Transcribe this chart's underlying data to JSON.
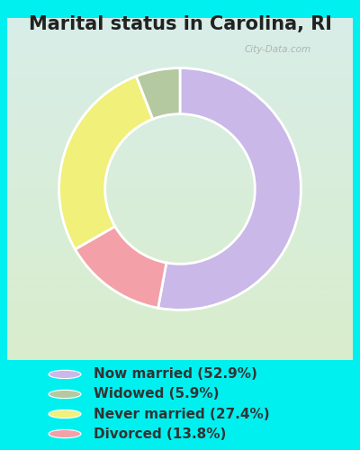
{
  "title": "Marital status in Carolina, RI",
  "slices": [
    52.9,
    13.8,
    27.4,
    5.9
  ],
  "colors": [
    "#c9b8e8",
    "#f4a0a8",
    "#f0f07a",
    "#b5c9a1"
  ],
  "labels": [
    "Now married (52.9%)",
    "Widowed (5.9%)",
    "Never married (27.4%)",
    "Divorced (13.8%)"
  ],
  "legend_colors": [
    "#c9b8e8",
    "#b5c9a1",
    "#f0f07a",
    "#f4a0a8"
  ],
  "legend_labels": [
    "Now married (52.9%)",
    "Widowed (5.9%)",
    "Never married (27.4%)",
    "Divorced (13.8%)"
  ],
  "bg_color": "#00f0f0",
  "chart_bg_top_left": "#d4ede6",
  "chart_bg_top_right": "#e8f4f0",
  "chart_bg_bottom_left": "#d8edcc",
  "chart_bg_bottom_right": "#e0f0d8",
  "donut_width": 0.38,
  "start_angle": 90,
  "watermark": "City-Data.com",
  "title_fontsize": 15,
  "legend_fontsize": 11
}
